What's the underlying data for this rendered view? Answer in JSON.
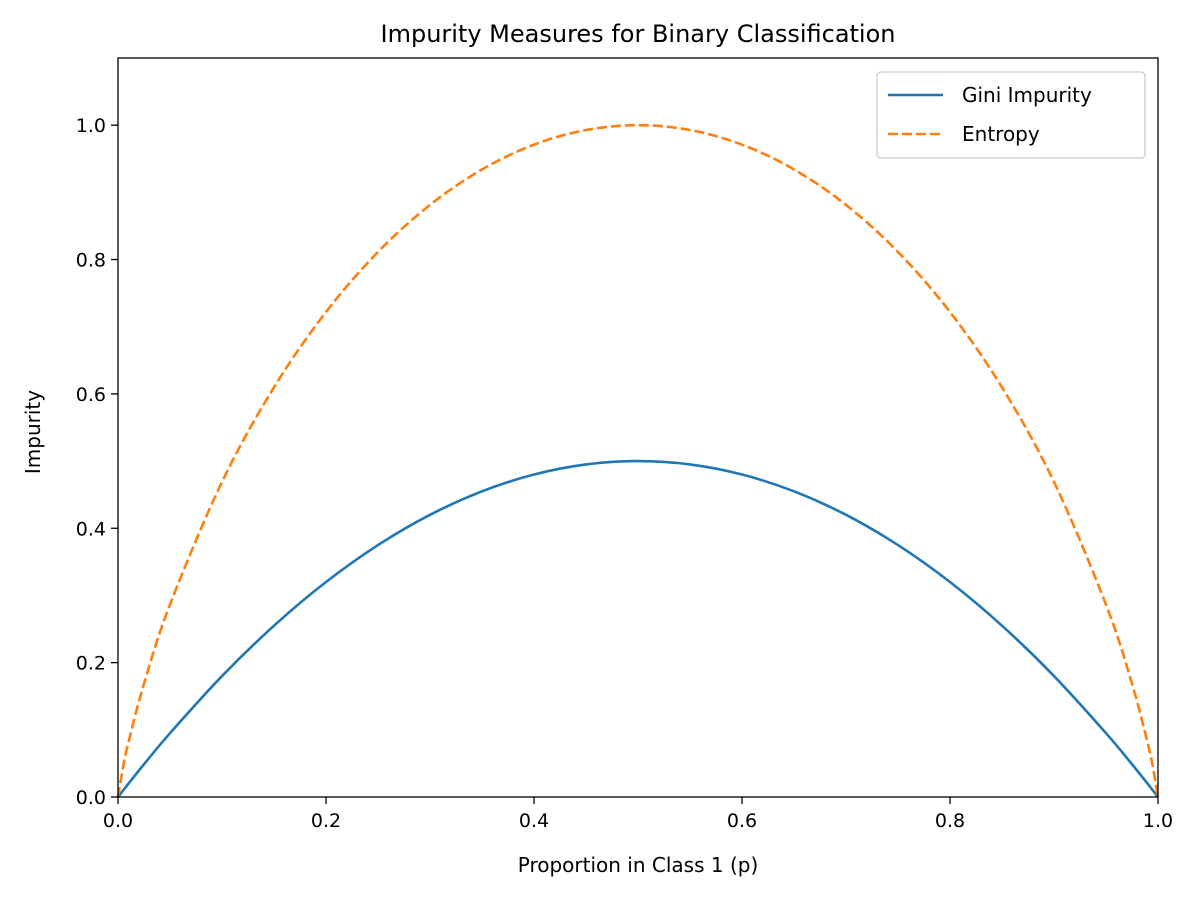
{
  "chart_data": {
    "type": "line",
    "title": "Impurity Measures for Binary Classification",
    "xlabel": "Proportion in Class 1 (p)",
    "ylabel": "Impurity",
    "xlim": [
      0,
      1
    ],
    "ylim": [
      0,
      1.1
    ],
    "xticks": [
      "0.0",
      "0.2",
      "0.4",
      "0.6",
      "0.8",
      "1.0"
    ],
    "yticks": [
      "0.0",
      "0.2",
      "0.4",
      "0.6",
      "0.8",
      "1.0"
    ],
    "grid": false,
    "legend_position": "top-right",
    "x": [
      0,
      0.005,
      0.01,
      0.025,
      0.05,
      0.1,
      0.15,
      0.2,
      0.25,
      0.3,
      0.35,
      0.4,
      0.45,
      0.5,
      0.55,
      0.6,
      0.65,
      0.7,
      0.75,
      0.8,
      0.85,
      0.9,
      0.95,
      0.975,
      0.99,
      0.995,
      1
    ],
    "series": [
      {
        "name": "Gini Impurity",
        "color": "#1f77b4",
        "style": "solid",
        "values": [
          0,
          0.00995,
          0.0198,
          0.04875,
          0.095,
          0.18,
          0.255,
          0.32,
          0.375,
          0.42,
          0.455,
          0.48,
          0.495,
          0.5,
          0.495,
          0.48,
          0.455,
          0.42,
          0.375,
          0.32,
          0.255,
          0.18,
          0.095,
          0.04875,
          0.0198,
          0.00995,
          0
        ]
      },
      {
        "name": "Entropy",
        "color": "#ff7f0e",
        "style": "dashed",
        "values": [
          0,
          0.0454,
          0.0808,
          0.1687,
          0.2864,
          0.469,
          0.6098,
          0.7219,
          0.8113,
          0.8813,
          0.9341,
          0.971,
          0.9928,
          1,
          0.9928,
          0.971,
          0.9341,
          0.8813,
          0.8113,
          0.7219,
          0.6098,
          0.469,
          0.2864,
          0.1687,
          0.0808,
          0.0454,
          0
        ]
      }
    ]
  }
}
